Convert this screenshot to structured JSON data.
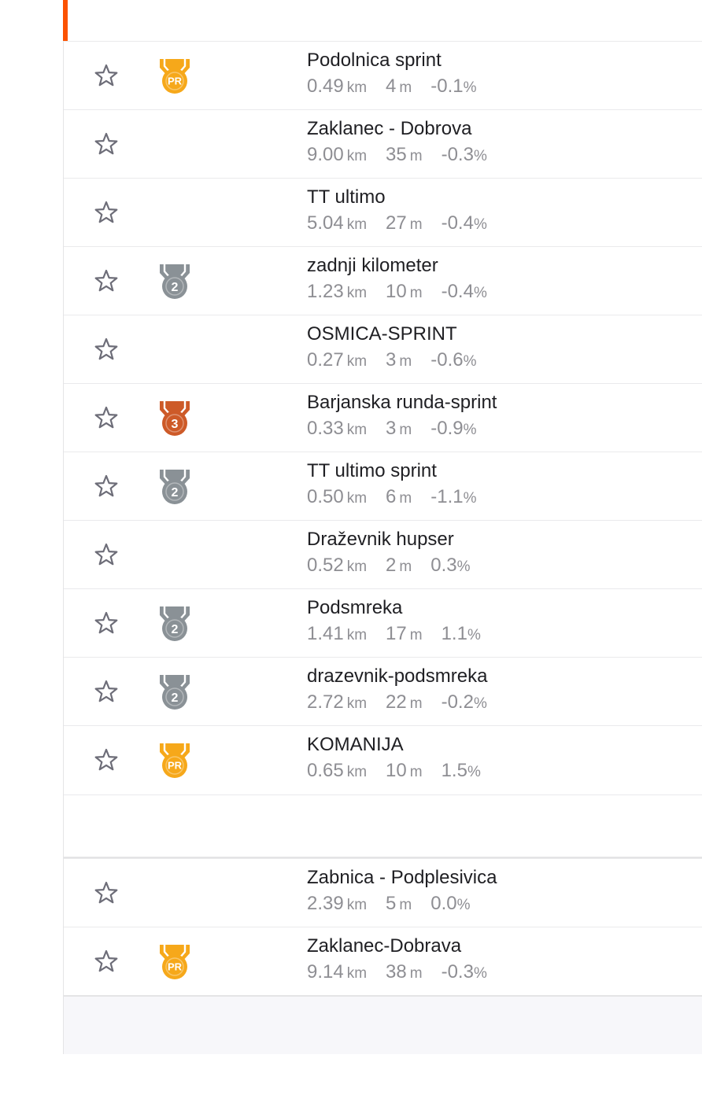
{
  "colors": {
    "accent": "#fc5200",
    "gold": "#f6a81a",
    "silver": "#8a9196",
    "bronze": "#cd5a28",
    "star_outline": "#6d6d78"
  },
  "segments": [
    {
      "name": "Podolnica sprint",
      "distance": "0.49",
      "distance_unit": "km",
      "elevation": "4",
      "elevation_unit": "m",
      "grade": "-0.1",
      "grade_unit": "%",
      "award": "pr",
      "award_label": "PR",
      "starred": false
    },
    {
      "name": "Zaklanec - Dobrova",
      "distance": "9.00",
      "distance_unit": "km",
      "elevation": "35",
      "elevation_unit": "m",
      "grade": "-0.3",
      "grade_unit": "%",
      "award": "none",
      "award_label": "",
      "starred": false
    },
    {
      "name": "TT ultimo",
      "distance": "5.04",
      "distance_unit": "km",
      "elevation": "27",
      "elevation_unit": "m",
      "grade": "-0.4",
      "grade_unit": "%",
      "award": "none",
      "award_label": "",
      "starred": false
    },
    {
      "name": "zadnji kilometer",
      "distance": "1.23",
      "distance_unit": "km",
      "elevation": "10",
      "elevation_unit": "m",
      "grade": "-0.4",
      "grade_unit": "%",
      "award": "silver",
      "award_label": "2",
      "starred": false
    },
    {
      "name": "OSMICA-SPRINT",
      "distance": "0.27",
      "distance_unit": "km",
      "elevation": "3",
      "elevation_unit": "m",
      "grade": "-0.6",
      "grade_unit": "%",
      "award": "none",
      "award_label": "",
      "starred": false
    },
    {
      "name": "Barjanska runda-sprint",
      "distance": "0.33",
      "distance_unit": "km",
      "elevation": "3",
      "elevation_unit": "m",
      "grade": "-0.9",
      "grade_unit": "%",
      "award": "bronze",
      "award_label": "3",
      "starred": false
    },
    {
      "name": "TT ultimo sprint",
      "distance": "0.50",
      "distance_unit": "km",
      "elevation": "6",
      "elevation_unit": "m",
      "grade": "-1.1",
      "grade_unit": "%",
      "award": "silver",
      "award_label": "2",
      "starred": false
    },
    {
      "name": "Draževnik hupser",
      "distance": "0.52",
      "distance_unit": "km",
      "elevation": "2",
      "elevation_unit": "m",
      "grade": "0.3",
      "grade_unit": "%",
      "award": "none",
      "award_label": "",
      "starred": false
    },
    {
      "name": "Podsmreka",
      "distance": "1.41",
      "distance_unit": "km",
      "elevation": "17",
      "elevation_unit": "m",
      "grade": "1.1",
      "grade_unit": "%",
      "award": "silver",
      "award_label": "2",
      "starred": false
    },
    {
      "name": "drazevnik-podsmreka",
      "distance": "2.72",
      "distance_unit": "km",
      "elevation": "22",
      "elevation_unit": "m",
      "grade": "-0.2",
      "grade_unit": "%",
      "award": "silver",
      "award_label": "2",
      "starred": false
    },
    {
      "name": "KOMANIJA",
      "distance": "0.65",
      "distance_unit": "km",
      "elevation": "10",
      "elevation_unit": "m",
      "grade": "1.5",
      "grade_unit": "%",
      "award": "pr",
      "award_label": "PR",
      "starred": false
    }
  ],
  "segments_more": [
    {
      "name": "Zabnica - Podplesivica",
      "distance": "2.39",
      "distance_unit": "km",
      "elevation": "5",
      "elevation_unit": "m",
      "grade": "0.0",
      "grade_unit": "%",
      "award": "none",
      "award_label": "",
      "starred": false
    },
    {
      "name": "Zaklanec-Dobrava",
      "distance": "9.14",
      "distance_unit": "km",
      "elevation": "38",
      "elevation_unit": "m",
      "grade": "-0.3",
      "grade_unit": "%",
      "award": "pr",
      "award_label": "PR",
      "starred": false
    }
  ]
}
